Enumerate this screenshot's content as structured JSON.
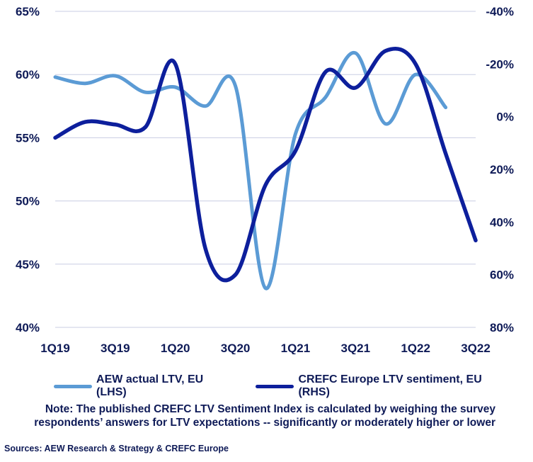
{
  "chart_data": {
    "type": "line",
    "x": [
      "1Q19",
      "2Q19",
      "3Q19",
      "4Q19",
      "1Q20",
      "2Q20",
      "3Q20",
      "4Q20",
      "1Q21",
      "2Q21",
      "3Q21",
      "4Q21",
      "1Q22",
      "2Q22",
      "3Q22"
    ],
    "x_tick_labels": [
      "1Q19",
      "3Q19",
      "1Q20",
      "3Q20",
      "1Q21",
      "3Q21",
      "1Q22",
      "3Q22"
    ],
    "y_left": {
      "ticks": [
        "40%",
        "45%",
        "50%",
        "55%",
        "60%",
        "65%"
      ],
      "lim": [
        40,
        65
      ]
    },
    "y_right": {
      "ticks": [
        "-40%",
        "-20%",
        "0%",
        "20%",
        "40%",
        "60%",
        "80%"
      ],
      "lim": [
        -40,
        80
      ],
      "inverted": true
    },
    "series": [
      {
        "name": "AEW actual LTV, EU (LHS)",
        "axis": "left",
        "color": "#5b9bd5",
        "values": [
          59.8,
          59.3,
          59.9,
          58.6,
          59.0,
          57.5,
          59.1,
          43.1,
          55.3,
          58.2,
          61.7,
          56.1,
          60.0,
          57.4,
          null
        ]
      },
      {
        "name": "CREFC Europe LTV sentiment, EU (RHS)",
        "axis": "right",
        "color": "#0d1f9c",
        "values": [
          8,
          2,
          3,
          4,
          -20,
          50,
          60,
          26,
          13,
          -17,
          -11,
          -25,
          -20,
          14,
          47
        ]
      }
    ],
    "grid": true,
    "legend_position": "bottom"
  },
  "note": "Note: The published CREFC LTV Sentiment Index is calculated by weighing the survey respondents’ answers for LTV expectations -- significantly or moderately higher or lower",
  "sources": "Sources: AEW Research & Strategy & CREFC Europe"
}
